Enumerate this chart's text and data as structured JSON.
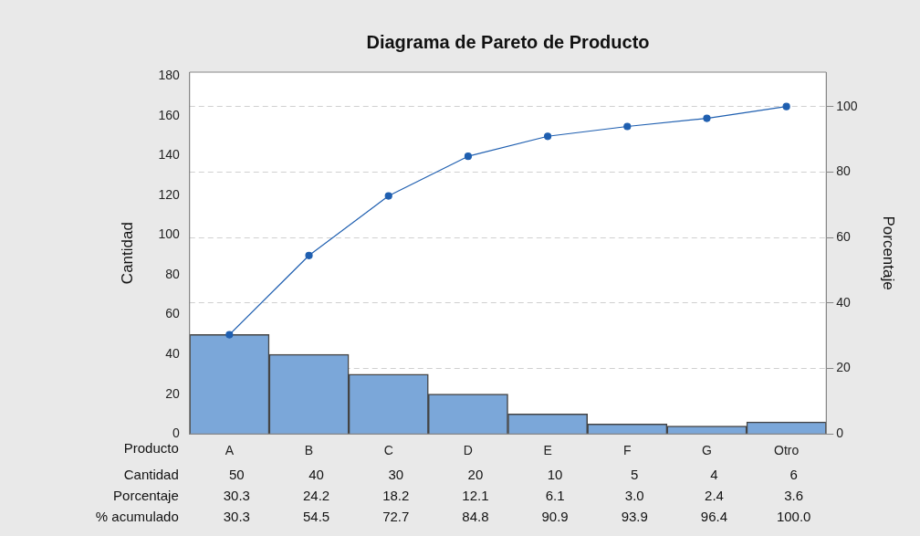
{
  "chart_data": {
    "type": "bar",
    "title": "Diagrama de Pareto de Producto",
    "xlabel": "Producto",
    "ylabel": "Cantidad",
    "y2label": "Porcentaje",
    "categories": [
      "A",
      "B",
      "C",
      "D",
      "E",
      "F",
      "G",
      "Otro"
    ],
    "series": [
      {
        "name": "Cantidad",
        "color": "#7ba7d9",
        "values": [
          50,
          40,
          30,
          20,
          10,
          5,
          4,
          6
        ],
        "value_labels": [
          "50",
          "40",
          "30",
          "20",
          "10",
          "5",
          "4",
          "6"
        ]
      },
      {
        "type": "line",
        "axis": "y2",
        "color": "#1f5fb0",
        "values": [
          30.3,
          54.5,
          72.7,
          84.8,
          90.9,
          93.9,
          96.4,
          100.0
        ],
        "value_labels": [
          "30.3",
          "54.5",
          "72.7",
          "84.8",
          "90.9",
          "93.9",
          "96.4",
          "100.0"
        ]
      }
    ],
    "annotations": [
      "Porcentaje",
      "30.3",
      "24.2",
      "18.2",
      "12.1",
      "6.1",
      "3.0",
      "2.4",
      "3.6",
      "% acumulado"
    ],
    "ylim": [
      0,
      182
    ],
    "yticks": [
      0,
      20,
      40,
      60,
      80,
      100,
      120,
      140,
      160,
      180
    ],
    "y2lim": [
      0,
      110.5
    ],
    "y2ticks": [
      0,
      20,
      40,
      60,
      80,
      100
    ],
    "grid": "y2",
    "legend": false,
    "marker": "circle",
    "line_style": "solid"
  }
}
